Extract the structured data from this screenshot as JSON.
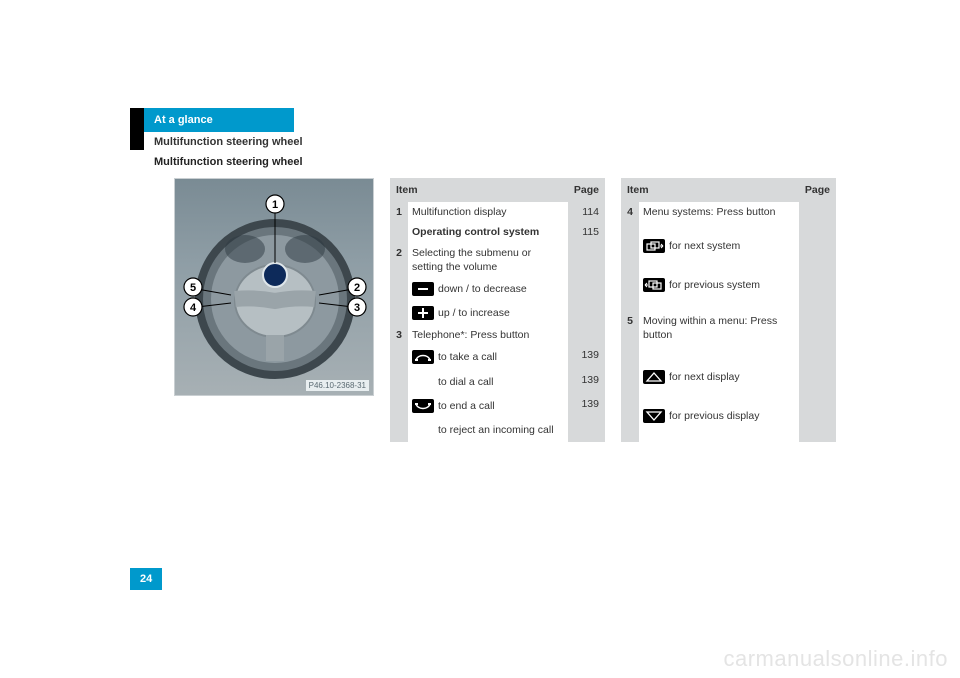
{
  "pageNumber": "24",
  "watermark": "carmanualsonline.info",
  "header": {
    "section": "At a glance",
    "subsection": "Multifunction steering wheel",
    "title": "Multifunction steering wheel"
  },
  "figure": {
    "caption": "P46.10-2368-31",
    "callouts": [
      "1",
      "2",
      "3",
      "4",
      "5"
    ]
  },
  "tablesHeader": {
    "item": "Item",
    "page": "Page"
  },
  "table1": {
    "rows": [
      {
        "num": "1",
        "lines": [
          {
            "text": "Multifunction display",
            "bold": false,
            "page": "114"
          },
          {
            "text": "Operating control system",
            "bold": true,
            "page": "115"
          }
        ]
      },
      {
        "num": "2",
        "lines": [
          {
            "text": "Selecting the submenu or setting the volume",
            "bold": false,
            "page": ""
          },
          {
            "icon": "minus",
            "text": "down / to decrease",
            "page": ""
          },
          {
            "icon": "plus",
            "text": "up / to increase",
            "page": ""
          }
        ]
      },
      {
        "num": "3",
        "lines": [
          {
            "text": "Telephone*: Press button",
            "bold": false,
            "page": ""
          },
          {
            "icon": "phone-up",
            "text": "to take a call",
            "page": "139"
          },
          {
            "icon": "blank",
            "text": "to dial a call",
            "page": "139"
          },
          {
            "icon": "phone-down",
            "text": "to end a call",
            "page": "139"
          },
          {
            "icon": "blank",
            "text": "to reject an incoming call",
            "page": ""
          }
        ]
      }
    ]
  },
  "table2": {
    "rows": [
      {
        "num": "4",
        "lines": [
          {
            "text": "Menu systems: Press button",
            "bold": false,
            "page": ""
          },
          {
            "icon": "screens-right",
            "text": "for next system",
            "page": ""
          },
          {
            "icon": "screens-left",
            "text": "for previous system",
            "page": ""
          }
        ]
      },
      {
        "num": "5",
        "lines": [
          {
            "text": "Moving within a menu: Press button",
            "bold": false,
            "page": ""
          },
          {
            "icon": "tri-up",
            "text": "for next display",
            "page": ""
          },
          {
            "icon": "tri-down",
            "text": "for previous display",
            "page": ""
          }
        ]
      }
    ]
  },
  "colors": {
    "accent": "#0099cc",
    "headerGrey": "#d7d9da",
    "watermark": "#e4e4e4"
  }
}
